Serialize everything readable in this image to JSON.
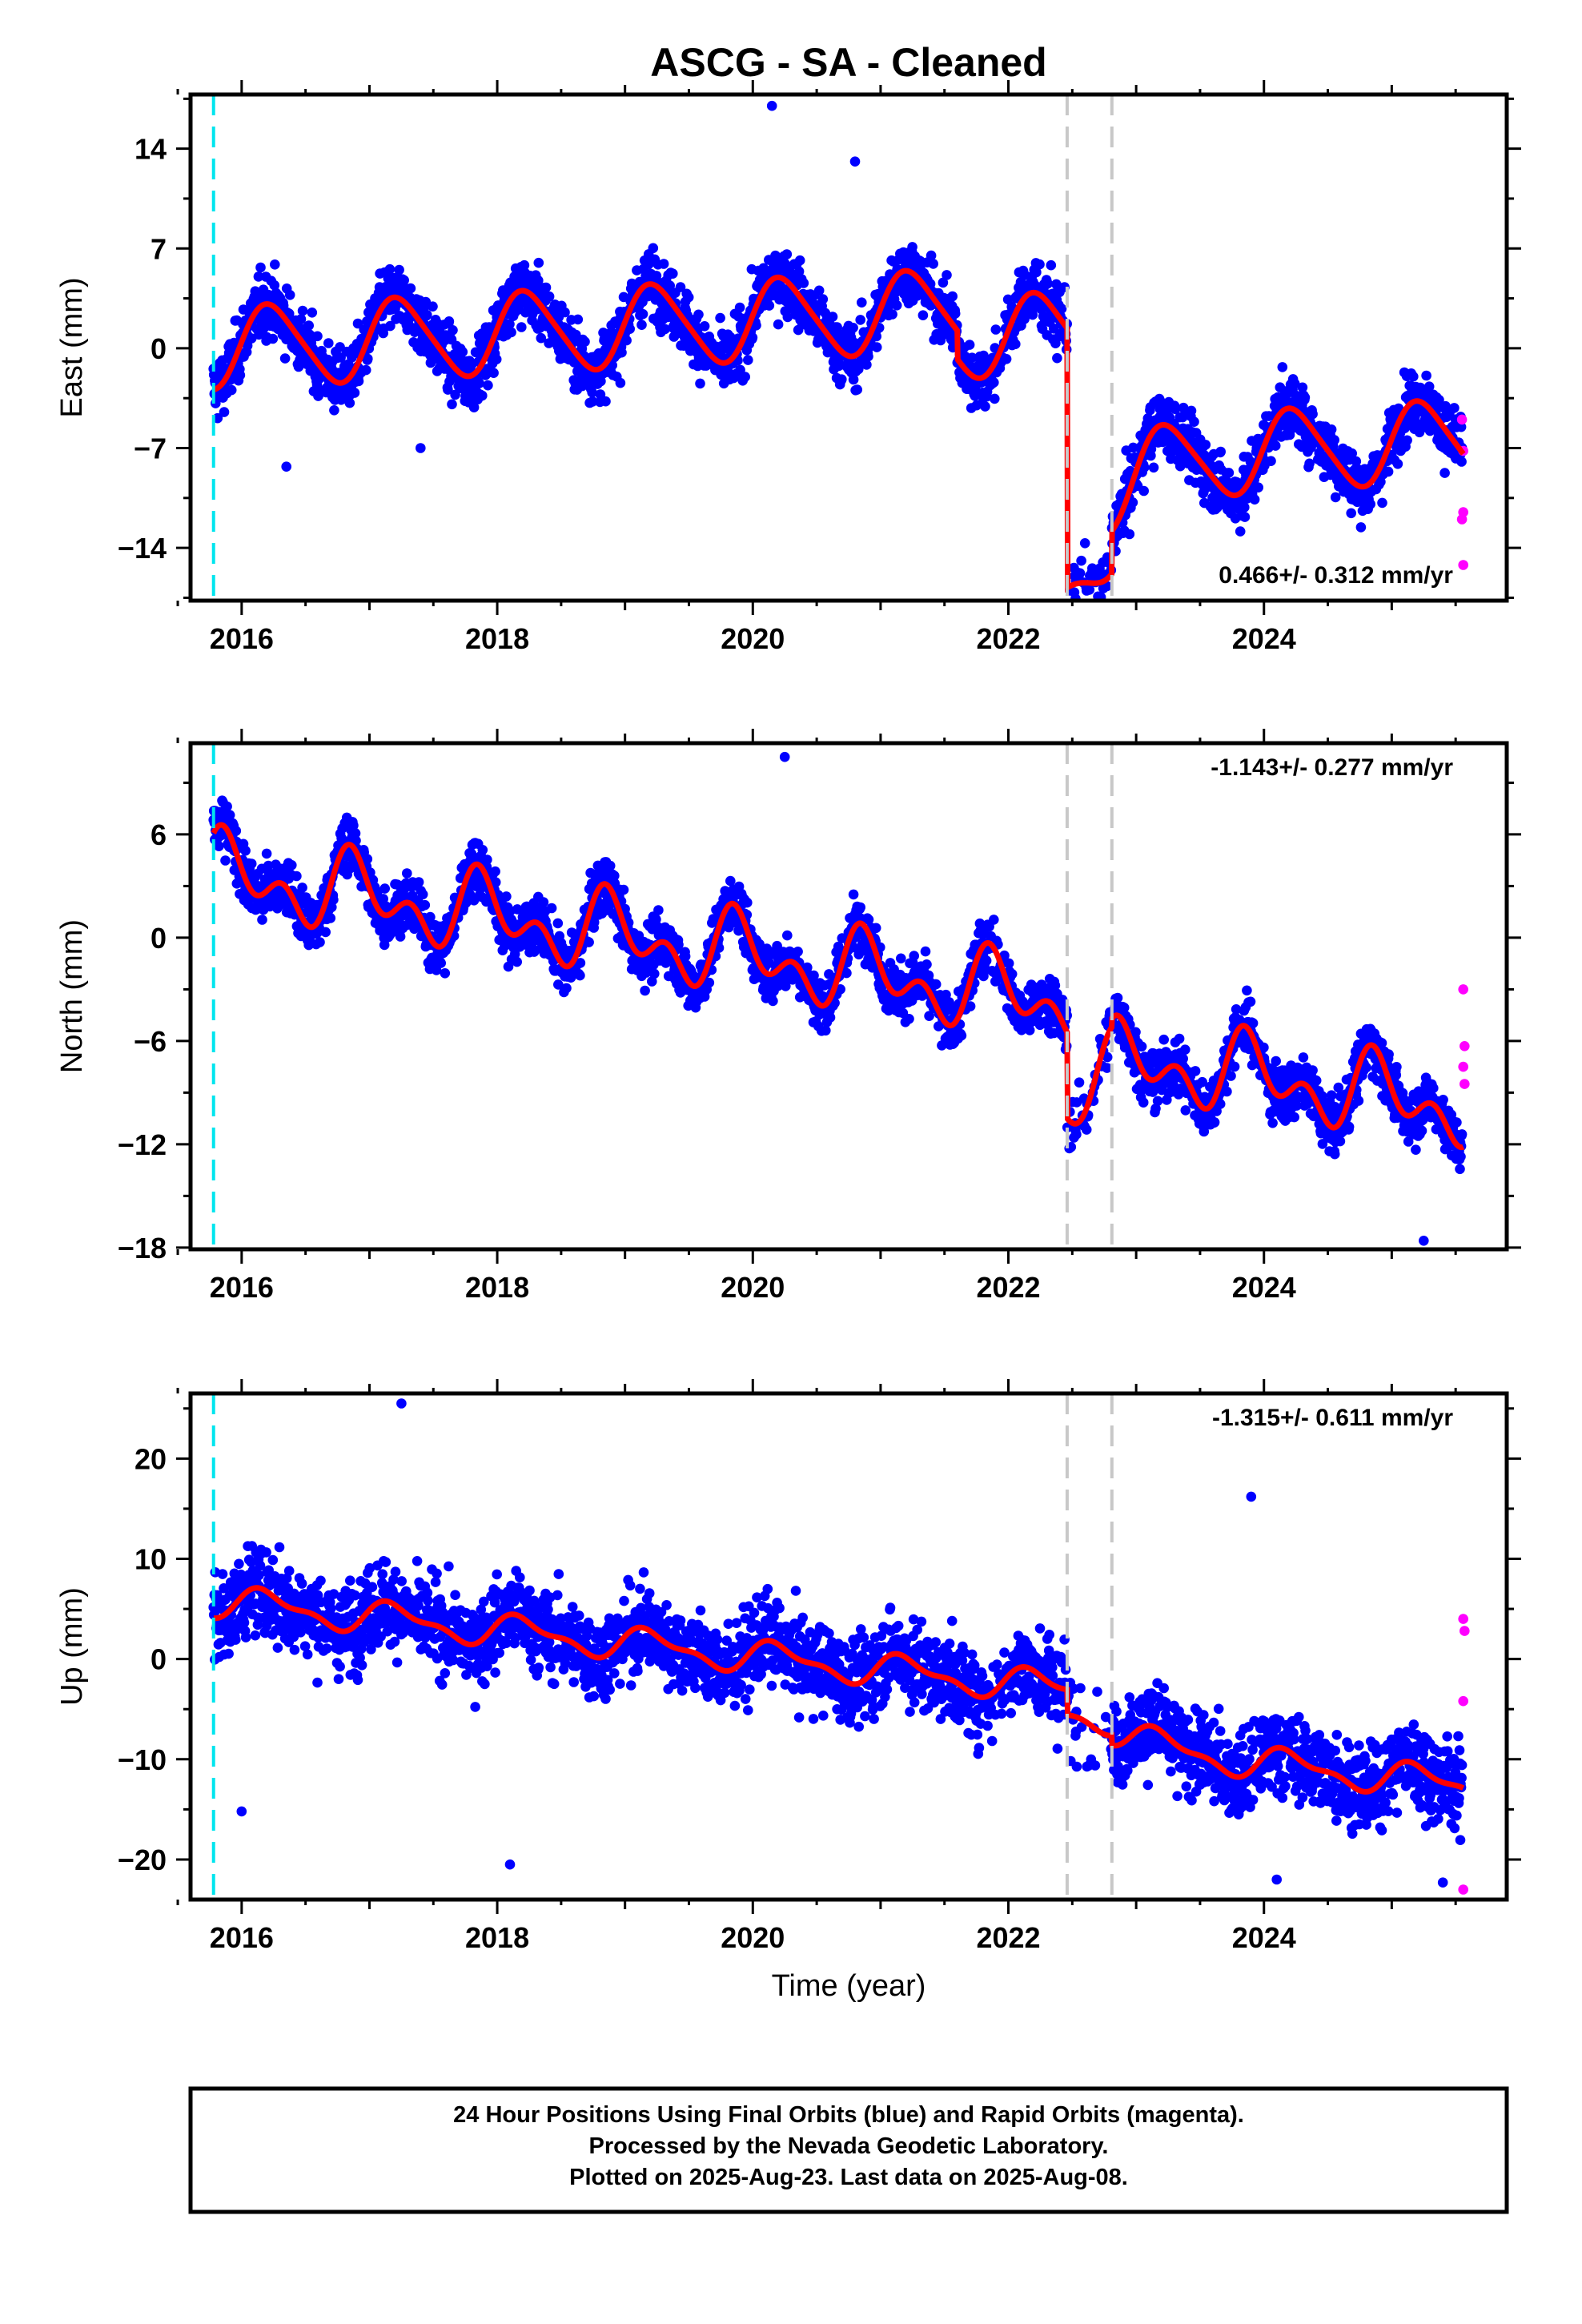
{
  "chart_data": {
    "type": "scatter",
    "title": "ASCG  - SA - Cleaned",
    "xlabel": "Time (year)",
    "xlim": [
      2015.6,
      2025.9
    ],
    "x_ticks": [
      2016,
      2018,
      2020,
      2022,
      2024
    ],
    "x_tick_labels": [
      "2016",
      "2018",
      "2020",
      "2022",
      "2024"
    ],
    "vertical_markers": [
      {
        "x": 2015.78,
        "style": "dashed",
        "color": "#00e5ee"
      },
      {
        "x": 2022.46,
        "style": "dashed",
        "color": "#c8c8c8"
      },
      {
        "x": 2022.81,
        "style": "dashed",
        "color": "#c8c8c8"
      }
    ],
    "colors": {
      "final": "#0000ff",
      "rapid": "#ff00ff",
      "model": "#ff0000"
    },
    "panels": [
      {
        "id": "east",
        "ylabel": "East (mm)",
        "ylim": [
          -17.7,
          17.8
        ],
        "y_ticks": [
          14,
          7,
          0,
          -7,
          -14
        ],
        "y_tick_labels": [
          "14",
          "7",
          "0",
          "−7",
          "−14"
        ],
        "rate_text": "0.466+/- 0.312 mm/yr",
        "rate_position": "bottom-right",
        "model": {
          "a": 0.1,
          "b": 0.466,
          "amp": 2.8,
          "p1": 0.1,
          "amp2": 0.4,
          "steps": [
            {
              "t": 2021.6,
              "d": -2.0
            },
            {
              "t": 2022.46,
              "d": -12.0
            },
            {
              "t": 2022.81,
              "d": 3.0
            }
          ],
          "post": {
            "t": 2022.46,
            "A": -6.2,
            "tau": 0.35
          }
        },
        "noise": 2.2,
        "outliers": [
          {
            "x": 2020.15,
            "y": 17.0
          },
          {
            "x": 2016.35,
            "y": -8.3
          },
          {
            "x": 2017.4,
            "y": -7.0
          },
          {
            "x": 2020.8,
            "y": 13.1
          }
        ],
        "rapid": [
          {
            "x": 2025.55,
            "y": -5.0
          },
          {
            "x": 2025.56,
            "y": -7.2
          },
          {
            "x": 2025.56,
            "y": -11.5
          },
          {
            "x": 2025.55,
            "y": -12.0
          },
          {
            "x": 2025.56,
            "y": -15.2
          }
        ]
      },
      {
        "id": "north",
        "ylabel": "North (mm)",
        "ylim": [
          -18.1,
          11.3
        ],
        "y_ticks": [
          6,
          0,
          -6,
          -12,
          -18
        ],
        "y_tick_labels": [
          "6",
          "0",
          "−6",
          "−12",
          "−18"
        ],
        "rate_text": "-1.143+/- 0.277 mm/yr",
        "rate_position": "top-right",
        "model": {
          "a": 3.5,
          "b": -1.143,
          "amp": 1.6,
          "p1": 2.2,
          "amp2": 1.4,
          "steps": [
            {
              "t": 2022.46,
              "d": -3.0
            },
            {
              "t": 2022.81,
              "d": 0.5
            }
          ],
          "post": {
            "t": 2022.46,
            "A": -2.0,
            "tau": 0.3
          }
        },
        "noise": 1.6,
        "outliers": [
          {
            "x": 2020.25,
            "y": 10.5
          },
          {
            "x": 2025.25,
            "y": -17.6
          }
        ],
        "rapid": [
          {
            "x": 2025.56,
            "y": -3.0
          },
          {
            "x": 2025.57,
            "y": -6.3
          },
          {
            "x": 2025.56,
            "y": -7.5
          },
          {
            "x": 2025.57,
            "y": -8.5
          }
        ]
      },
      {
        "id": "up",
        "ylabel": "Up (mm)",
        "ylim": [
          -24.0,
          26.5
        ],
        "y_ticks": [
          20,
          10,
          0,
          -10,
          -20
        ],
        "y_tick_labels": [
          "20",
          "10",
          "0",
          "−10",
          "−20"
        ],
        "rate_text": "-1.315+/- 0.611 mm/yr",
        "rate_position": "top-right",
        "model": {
          "a": 5.5,
          "b": -1.315,
          "amp": 1.4,
          "p1": 0.3,
          "amp2": 0.6,
          "steps": [
            {
              "t": 2022.46,
              "d": -2.5
            },
            {
              "t": 2022.81,
              "d": -3.0
            }
          ],
          "post": {
            "t": 2022.81,
            "A": 2.0,
            "tau": 0.4
          }
        },
        "noise": 4.2,
        "outliers": [
          {
            "x": 2017.25,
            "y": 25.5
          },
          {
            "x": 2018.1,
            "y": -20.5
          },
          {
            "x": 2016.0,
            "y": -15.2
          },
          {
            "x": 2023.9,
            "y": 16.2
          },
          {
            "x": 2024.1,
            "y": -22.0
          },
          {
            "x": 2025.4,
            "y": -22.3
          }
        ],
        "rapid": [
          {
            "x": 2025.56,
            "y": 4.0
          },
          {
            "x": 2025.57,
            "y": 2.8
          },
          {
            "x": 2025.56,
            "y": -4.2
          },
          {
            "x": 2025.56,
            "y": -23.0
          }
        ]
      }
    ]
  },
  "footer": {
    "line1": "24 Hour Positions Using Final Orbits (blue) and Rapid Orbits (magenta).",
    "line2": "Processed by the Nevada Geodetic Laboratory.",
    "line3": "Plotted on 2025-Aug-23. Last data on 2025-Aug-08."
  }
}
